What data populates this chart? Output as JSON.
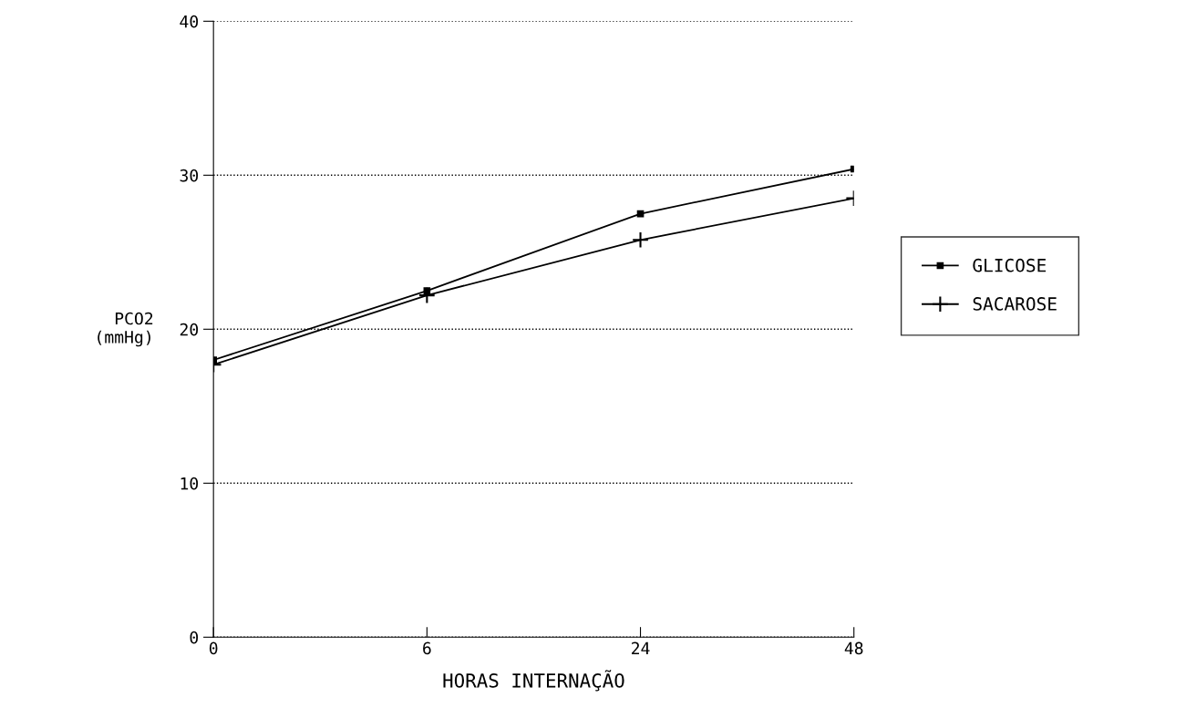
{
  "chart_data": {
    "type": "line",
    "xlabel": "HORAS INTERNAÇÃO",
    "ylabel": "PCO2\n(mmHg)",
    "categories": [
      "0",
      "6",
      "24",
      "48"
    ],
    "series": [
      {
        "name": "GLICOSE",
        "color": "#000000",
        "marker": "square",
        "values": [
          18.0,
          22.5,
          27.5,
          30.4
        ]
      },
      {
        "name": "SACAROSE",
        "color": "#000000",
        "marker": "cross",
        "values": [
          17.7,
          22.2,
          25.8,
          28.5
        ]
      }
    ],
    "ylim": [
      0,
      40
    ],
    "yticks": [
      0,
      10,
      20,
      30,
      40
    ],
    "grid": "y",
    "legend": "right",
    "line_style": "solid"
  }
}
